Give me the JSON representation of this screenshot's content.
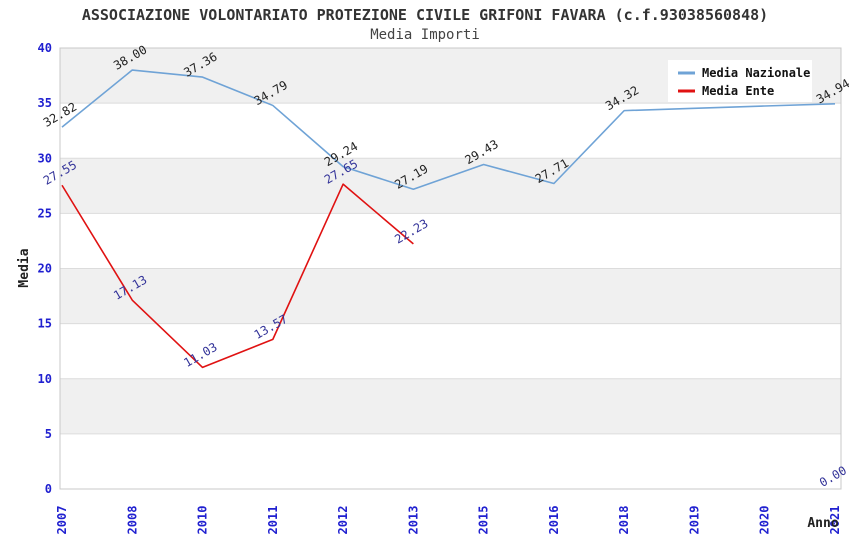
{
  "page": {
    "title": "ASSOCIAZIONE VOLONTARIATO PROTEZIONE CIVILE GRIFONI FAVARA (c.f.93038560848)",
    "subtitle": "Media Importi"
  },
  "colors": {
    "tick_label": "#2020d0",
    "band_gray": "#f0f0f0",
    "band_white": "#ffffff",
    "gridline": "#dcdcdc",
    "plot_border": "#c8c8c8",
    "legend_background": "#ffffff"
  },
  "chart_data": {
    "type": "line",
    "title": "ASSOCIAZIONE VOLONTARIATO PROTEZIONE CIVILE GRIFONI FAVARA (c.f.93038560848)",
    "subtitle": "Media Importi",
    "xlabel": "Anno",
    "ylabel": "Media",
    "ylim": [
      0,
      40
    ],
    "ytick_step": 5,
    "yticks": [
      0,
      5,
      10,
      15,
      20,
      25,
      30,
      35,
      40
    ],
    "grid": "horizontal-bands-alternating",
    "legend_position": "top-right",
    "categories": [
      "2007",
      "2008",
      "2010",
      "2011",
      "2012",
      "2013",
      "2015",
      "2016",
      "2018",
      "2019",
      "2020",
      "2021"
    ],
    "series": [
      {
        "name": "Media Nazionale",
        "color": "#6fa3d6",
        "label_color": "#222222",
        "values": [
          32.82,
          38.0,
          37.36,
          34.79,
          29.24,
          27.19,
          29.43,
          27.71,
          34.32,
          34.53,
          34.74,
          34.94
        ],
        "labels": [
          "32.82",
          "38.00",
          "37.36",
          "34.79",
          "29.24",
          "27.19",
          "29.43",
          "27.71",
          "34.32",
          "",
          "",
          "34.94"
        ]
      },
      {
        "name": "Media Ente",
        "color": "#e01212",
        "label_color": "#333399",
        "values": [
          27.55,
          17.13,
          11.03,
          13.57,
          27.65,
          22.23,
          null,
          null,
          null,
          null,
          null,
          0.0
        ],
        "labels": [
          "27.55",
          "17.13",
          "11.03",
          "13.57",
          "27.65",
          "22.23",
          "",
          "",
          "",
          "",
          "",
          "0.00"
        ]
      }
    ]
  }
}
